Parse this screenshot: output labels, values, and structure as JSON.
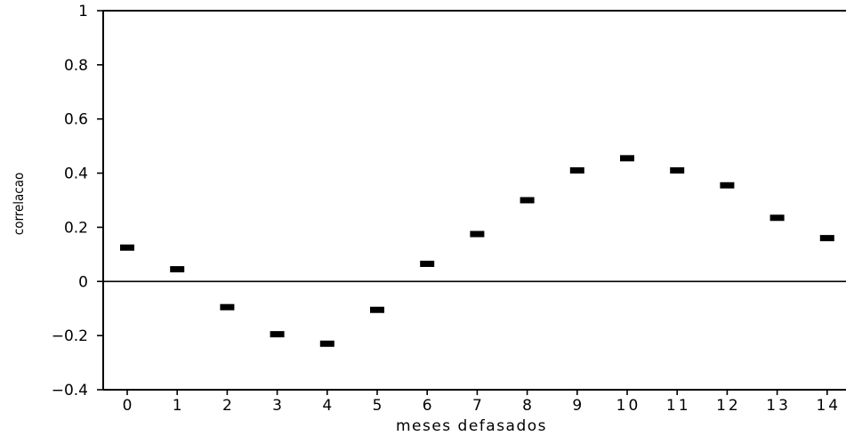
{
  "chart_data": {
    "type": "scatter",
    "title": "",
    "xlabel": "meses defasados",
    "ylabel": "correlacao",
    "x": [
      0,
      1,
      2,
      3,
      4,
      5,
      6,
      7,
      8,
      9,
      10,
      11,
      12,
      13,
      14
    ],
    "y": [
      0.125,
      0.045,
      -0.095,
      -0.195,
      -0.23,
      -0.105,
      0.065,
      0.175,
      0.3,
      0.41,
      0.455,
      0.41,
      0.355,
      0.235,
      0.16
    ],
    "xticks": [
      "0",
      "1",
      "2",
      "3",
      "4",
      "5",
      "6",
      "7",
      "8",
      "9",
      "10",
      "11",
      "12",
      "13",
      "14"
    ],
    "yticks": [
      "1",
      "0.8",
      "0.6",
      "0.4",
      "0.2",
      "0",
      "-0.2",
      "-0.4"
    ],
    "ylim": [
      -0.4,
      1
    ],
    "xlim": [
      -0.5,
      14.5
    ],
    "marker": "dash",
    "zero_line": true,
    "grid": false,
    "colors": {
      "marker": "#000000",
      "axis": "#000000"
    }
  }
}
